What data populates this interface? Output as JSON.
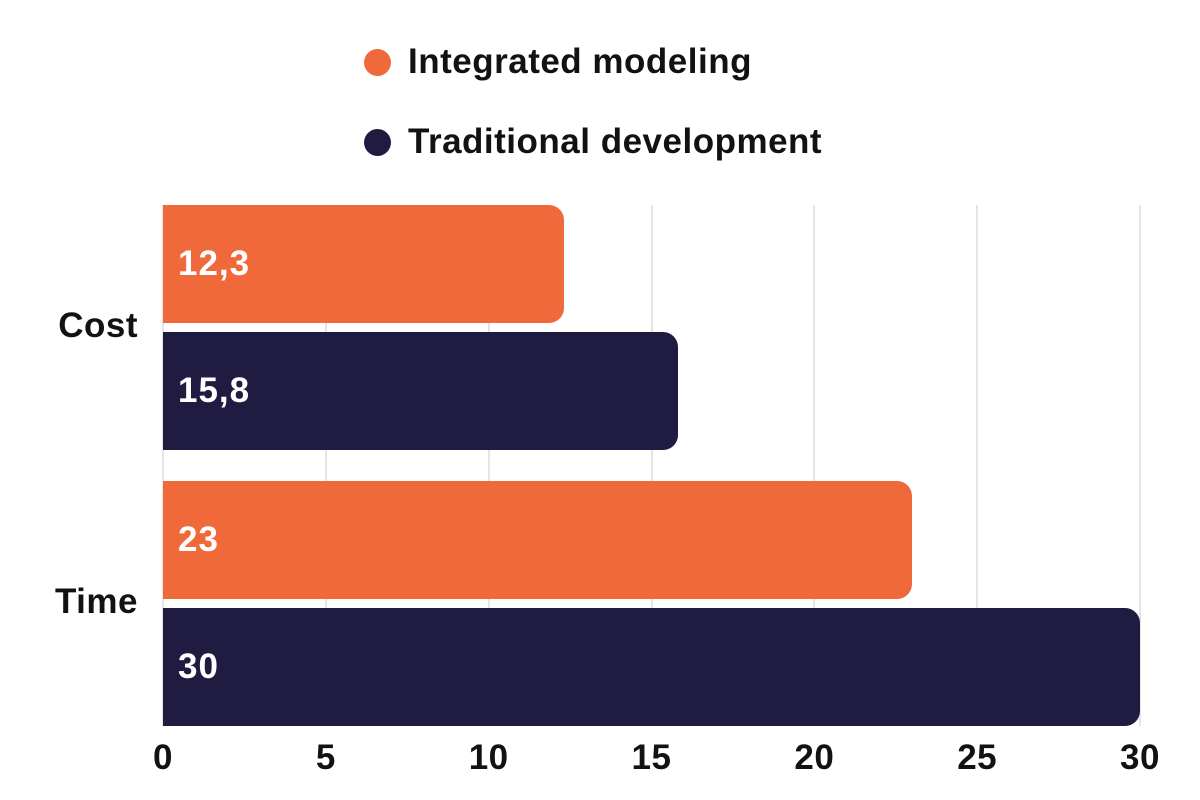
{
  "colors": {
    "orange": "#F0693B",
    "navy": "#201B41",
    "gridline": "#E5E5E7",
    "text": "#121212",
    "value_label_text": "#FFFFFF",
    "background": "#FFFFFF"
  },
  "legend": {
    "items": [
      {
        "label": "Integrated modeling",
        "color": "#F0693B"
      },
      {
        "label": "Traditional development",
        "color": "#201B41"
      }
    ]
  },
  "chart_data": {
    "type": "bar",
    "orientation": "horizontal",
    "title": "",
    "categories": [
      "Cost",
      "Time"
    ],
    "series": [
      {
        "name": "Integrated modeling",
        "color": "#F0693B",
        "values": [
          12.3,
          23
        ],
        "value_labels": [
          "12,3",
          "23"
        ]
      },
      {
        "name": "Traditional development",
        "color": "#201B41",
        "values": [
          15.8,
          30
        ],
        "value_labels": [
          "15,8",
          "30"
        ]
      }
    ],
    "xlim": [
      0,
      30
    ],
    "x_ticks": [
      0,
      5,
      10,
      15,
      20,
      25,
      30
    ],
    "grid": "vertical-gridlines",
    "legend_position": "top-center",
    "decimal_separator": ","
  }
}
